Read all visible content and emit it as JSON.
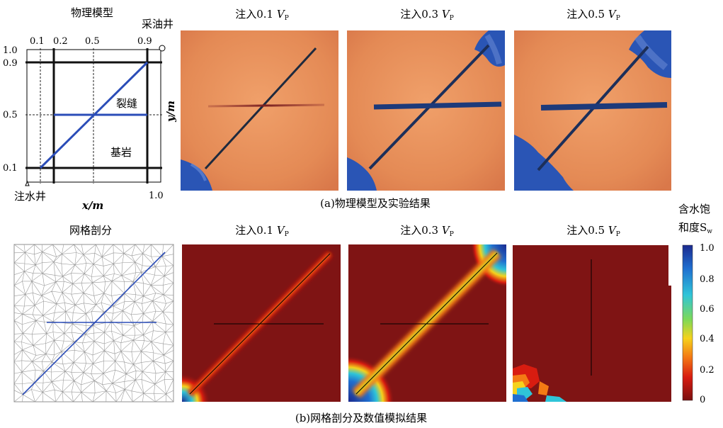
{
  "phys_model": {
    "title": "物理模型",
    "prod_well": "采油井",
    "inj_well": "注水井",
    "fracture": "裂缝",
    "matrix": "基岩",
    "xlabel": "x/m",
    "ylabel": "y/m",
    "x_ticks": [
      "0.1",
      "0.2",
      "0.5",
      "0.9"
    ],
    "x_end": "1.0",
    "y_ticks": [
      "1.0",
      "0.9",
      "0.5",
      "0.1"
    ]
  },
  "injection_titles": {
    "prefix": "注入",
    "values": [
      "0.1",
      "0.3",
      "0.5"
    ],
    "unit_letter": "V",
    "unit_sub": "P"
  },
  "caption_a": "(a)物理模型及实验结果",
  "mesh_title": "网格剖分",
  "caption_b": "(b)网格剖分及数值模拟结果",
  "colorbar": {
    "title_line1": "含水饱",
    "title_line2": "和度S",
    "title_sub": "w",
    "ticks": [
      "1.0",
      "0.8",
      "0.6",
      "0.4",
      "0.2",
      "0"
    ],
    "colors": [
      "#1c2a8e",
      "#1f6fd0",
      "#2fc4d8",
      "#7ed957",
      "#f5d21c",
      "#f47a14",
      "#d81c10",
      "#7a0f0f"
    ]
  },
  "colors": {
    "fracture_blue": "#2b4db8",
    "sim_background": "#7f1414",
    "photo_base": "#e58a55",
    "water_blue": "#2a55b5"
  }
}
